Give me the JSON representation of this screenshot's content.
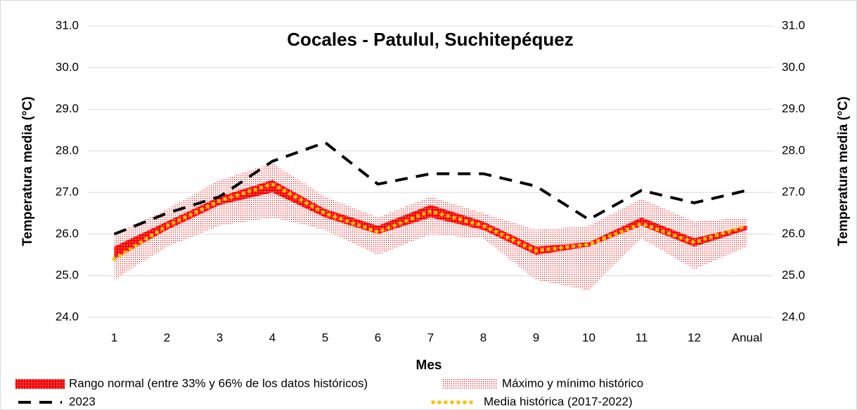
{
  "chart_data": {
    "type": "line",
    "title": "Cocales - Patulul, Suchitepéquez",
    "x_label": "Mes",
    "y_label": "Temperatura media (°C)",
    "y2_label": "Temperatura media (°C)",
    "categories": [
      "1",
      "2",
      "3",
      "4",
      "5",
      "6",
      "7",
      "8",
      "9",
      "10",
      "11",
      "12",
      "Anual"
    ],
    "ylim": [
      24,
      31
    ],
    "yticks": [
      {
        "value": 24,
        "label": "24.0"
      },
      {
        "value": 25,
        "label": "25.0"
      },
      {
        "value": 26,
        "label": "26.0"
      },
      {
        "value": 27,
        "label": "27.0"
      },
      {
        "value": 28,
        "label": "28.0"
      },
      {
        "value": 29,
        "label": "29.0"
      },
      {
        "value": 30,
        "label": "30.0"
      },
      {
        "value": 31,
        "label": "31.0"
      }
    ],
    "grid": true,
    "legend": "bottom",
    "series": [
      {
        "name": "Rango normal (entre 33% y 66% de los datos históricos)",
        "color": "#ff0000",
        "lower": [
          25.4,
          26.1,
          26.7,
          27.0,
          26.4,
          26.0,
          26.4,
          26.1,
          25.5,
          25.7,
          26.2,
          25.7,
          26.1
        ],
        "upper": [
          25.7,
          26.3,
          26.9,
          27.3,
          26.6,
          26.2,
          26.7,
          26.3,
          25.7,
          25.8,
          26.4,
          25.9,
          26.2
        ]
      },
      {
        "name": "Máximo y mínimo histórico",
        "color": "#ff0000",
        "lower": [
          24.9,
          25.7,
          26.2,
          26.4,
          26.1,
          25.5,
          26.0,
          25.9,
          24.9,
          24.65,
          25.9,
          25.15,
          25.7
        ],
        "upper": [
          26.0,
          26.6,
          27.3,
          27.7,
          26.9,
          26.4,
          26.9,
          26.5,
          26.1,
          26.2,
          26.85,
          26.3,
          26.4
        ]
      },
      {
        "name": "2023",
        "color": "#000000",
        "line_style": "dash",
        "values": [
          26.0,
          26.5,
          26.9,
          27.75,
          28.2,
          27.2,
          27.45,
          27.45,
          27.15,
          26.35,
          27.05,
          26.75,
          27.05
        ]
      },
      {
        "name": "Media histórica (2017-2022)",
        "color": "#ffc000",
        "line_style": "dot",
        "values": [
          25.4,
          26.2,
          26.8,
          27.2,
          26.5,
          26.05,
          26.55,
          26.2,
          25.6,
          25.75,
          26.25,
          25.8,
          26.2
        ]
      }
    ]
  }
}
